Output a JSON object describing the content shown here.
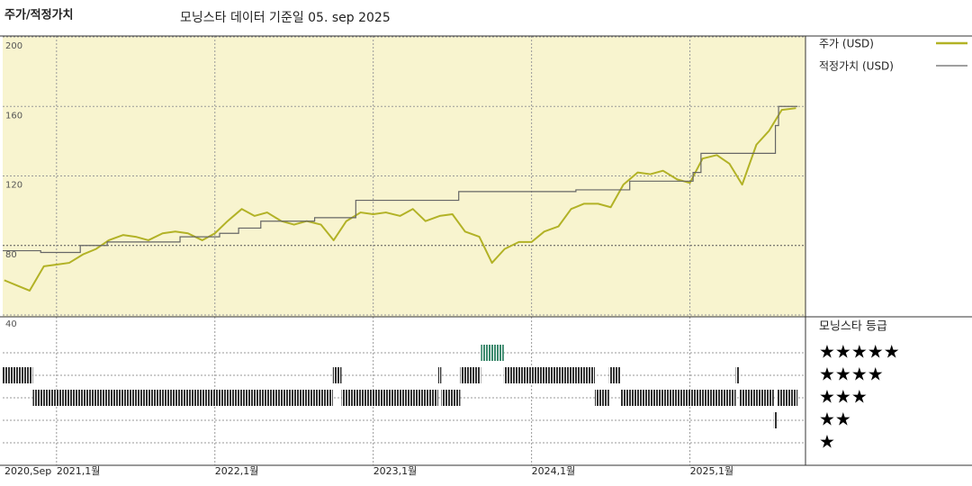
{
  "chart_data": {
    "type": "line",
    "title": "주가/적정가치",
    "subtitle": "모닝스타 데이터 기준일 05. sep 2025",
    "xlim": [
      2020.66,
      2025.73
    ],
    "xticks": [
      {
        "value": 2020.66,
        "label": "2020,Sep"
      },
      {
        "value": 2021,
        "label": "2021,1월"
      },
      {
        "value": 2022,
        "label": "2022,1월"
      },
      {
        "value": 2023,
        "label": "2023,1월"
      },
      {
        "value": 2024,
        "label": "2024,1월"
      },
      {
        "value": 2025,
        "label": "2025,1월"
      }
    ],
    "ylim": [
      40,
      200
    ],
    "yticks": [
      40,
      80,
      120,
      160,
      200
    ],
    "grid": true,
    "background": "#f8f4cf",
    "series": [
      {
        "name": "주가 (USD)",
        "color": "#b2b226",
        "x": [
          2020.67,
          2020.75,
          2020.83,
          2020.92,
          2021.0,
          2021.08,
          2021.17,
          2021.25,
          2021.33,
          2021.42,
          2021.5,
          2021.58,
          2021.67,
          2021.75,
          2021.83,
          2021.92,
          2022.0,
          2022.08,
          2022.17,
          2022.25,
          2022.33,
          2022.42,
          2022.5,
          2022.58,
          2022.67,
          2022.75,
          2022.83,
          2022.92,
          2023.0,
          2023.08,
          2023.17,
          2023.25,
          2023.33,
          2023.42,
          2023.5,
          2023.58,
          2023.67,
          2023.75,
          2023.83,
          2023.92,
          2024.0,
          2024.08,
          2024.17,
          2024.25,
          2024.33,
          2024.42,
          2024.5,
          2024.58,
          2024.67,
          2024.75,
          2024.83,
          2024.92,
          2025.0,
          2025.08,
          2025.17,
          2025.25,
          2025.33,
          2025.42,
          2025.5,
          2025.58,
          2025.67
        ],
        "values": [
          60,
          57,
          54,
          68,
          69,
          70,
          75,
          78,
          83,
          86,
          85,
          83,
          87,
          88,
          87,
          83,
          87,
          94,
          101,
          97,
          99,
          94,
          92,
          94,
          92,
          83,
          94,
          99,
          98,
          99,
          97,
          101,
          94,
          97,
          98,
          88,
          85,
          70,
          78,
          82,
          82,
          88,
          91,
          101,
          104,
          104,
          102,
          115,
          122,
          121,
          123,
          118,
          116,
          130,
          132,
          127,
          115,
          138,
          146,
          158,
          159
        ]
      },
      {
        "name": "적정가치 (USD)",
        "color": "#666666",
        "step": true,
        "x": [
          2020.66,
          2020.9,
          2021.15,
          2021.32,
          2021.78,
          2022.03,
          2022.15,
          2022.29,
          2022.63,
          2022.89,
          2023.54,
          2024.28,
          2024.62,
          2025.02,
          2025.07,
          2025.54,
          2025.56,
          2025.68
        ],
        "values": [
          77,
          76,
          80,
          82,
          85,
          87,
          90,
          94,
          96,
          106,
          111,
          112,
          117,
          122,
          133,
          149,
          160,
          160
        ]
      }
    ],
    "rating": {
      "title": "모닝스타 등급",
      "labels": [
        "★★★★★",
        "★★★★",
        "★★★",
        "★★",
        "★"
      ],
      "start": [
        2020.66,
        2020.85,
        2022.745,
        2022.8,
        2023.41,
        2023.43,
        2023.55,
        2023.68,
        2023.825,
        2024.4,
        2024.49,
        2024.56,
        2025.29,
        2025.31,
        2025.53,
        2025.55
      ],
      "end": [
        2020.85,
        2022.745,
        2022.8,
        2023.41,
        2023.43,
        2023.55,
        2023.68,
        2023.825,
        2024.4,
        2024.49,
        2024.56,
        2025.29,
        2025.31,
        2025.53,
        2025.55,
        2025.68
      ],
      "stars": [
        4,
        3,
        4,
        3,
        4,
        3,
        4,
        5,
        4,
        3,
        4,
        3,
        4,
        3,
        2,
        3
      ],
      "star_colors": [
        "#333333",
        "#333333",
        "#333333",
        "#333333",
        "#3d8a6e"
      ]
    }
  }
}
